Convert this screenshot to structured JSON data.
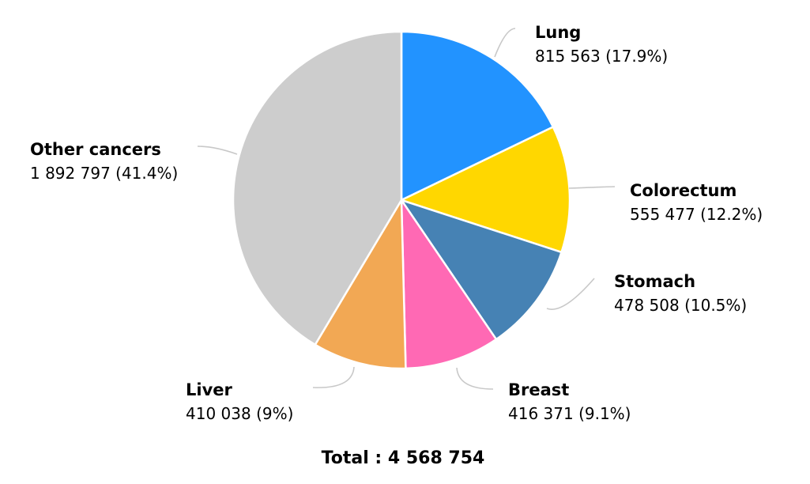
{
  "chart_data": {
    "type": "pie",
    "slices": [
      {
        "name": "Lung",
        "value": 815563,
        "percent": "17.9%",
        "value_label": "815 563 (17.9%)",
        "color": "#2293FF"
      },
      {
        "name": "Colorectum",
        "value": 555477,
        "percent": "12.2%",
        "value_label": "555 477 (12.2%)",
        "color": "#FFD700"
      },
      {
        "name": "Stomach",
        "value": 478508,
        "percent": "10.5%",
        "value_label": "478 508 (10.5%)",
        "color": "#4682B4"
      },
      {
        "name": "Breast",
        "value": 416371,
        "percent": "9.1%",
        "value_label": "416 371 (9.1%)",
        "color": "#FF69B4"
      },
      {
        "name": "Liver",
        "value": 410038,
        "percent": "9%",
        "value_label": "410 038 (9%)",
        "color": "#F2A854"
      },
      {
        "name": "Other cancers",
        "value": 1892797,
        "percent": "41.4%",
        "value_label": "1 892 797 (41.4%)",
        "color": "#CDCDCD"
      }
    ],
    "total_label": "Total : 4 568 754",
    "legend": "none"
  }
}
